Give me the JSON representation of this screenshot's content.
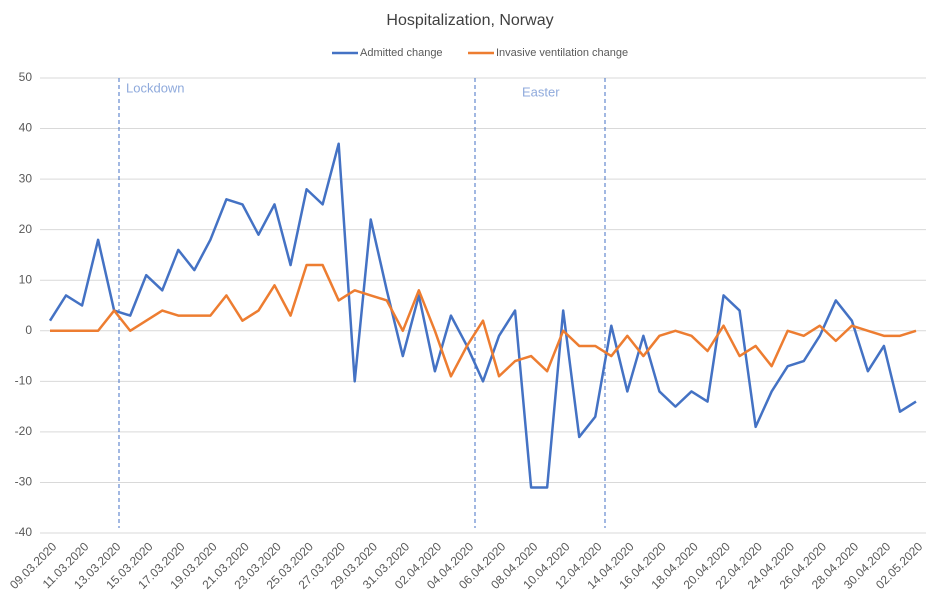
{
  "chart_data": {
    "type": "line",
    "title": "Hospitalization, Norway",
    "categories": [
      "09.03.2020",
      null,
      "11.03.2020",
      null,
      "13.03.2020",
      null,
      "15.03.2020",
      null,
      "17.03.2020",
      null,
      "19.03.2020",
      null,
      "21.03.2020",
      null,
      "23.03.2020",
      null,
      "25.03.2020",
      null,
      "27.03.2020",
      null,
      "29.03.2020",
      null,
      "31.03.2020",
      null,
      "02.04.2020",
      null,
      "04.04.2020",
      null,
      "06.04.2020",
      null,
      "08.04.2020",
      null,
      "10.04.2020",
      null,
      "12.04.2020",
      null,
      "14.04.2020",
      null,
      "16.04.2020",
      null,
      "18.04.2020",
      null,
      "20.04.2020",
      null,
      "22.04.2020",
      null,
      "24.04.2020",
      null,
      "26.04.2020",
      null,
      "28.04.2020",
      null,
      "30.04.2020",
      null,
      "02.05.2020"
    ],
    "series": [
      {
        "name": "Admitted change",
        "color": "#4472c4",
        "values": [
          2,
          7,
          5,
          18,
          4,
          3,
          11,
          8,
          16,
          12,
          18,
          26,
          25,
          19,
          25,
          13,
          28,
          25,
          37,
          -10,
          22,
          8,
          -5,
          7,
          -8,
          3,
          -3,
          -10,
          -1,
          4,
          -31,
          -31,
          4,
          -21,
          -17,
          1,
          -12,
          -1,
          -12,
          -15,
          -12,
          -14,
          7,
          4,
          -19,
          -12,
          -7,
          -6,
          -1,
          6,
          2,
          -8,
          -3,
          -16,
          -14
        ]
      },
      {
        "name": "Invasive ventilation change",
        "color": "#ed7d31",
        "values": [
          0,
          0,
          0,
          0,
          4,
          0,
          2,
          4,
          3,
          3,
          3,
          7,
          2,
          4,
          9,
          3,
          13,
          13,
          6,
          8,
          7,
          6,
          0,
          8,
          0,
          -9,
          -3,
          2,
          -9,
          -6,
          -5,
          -8,
          0,
          -3,
          -3,
          -5,
          -1,
          -5,
          -1,
          0,
          -1,
          -4,
          1,
          -5,
          -3,
          -7,
          0,
          -1,
          1,
          -2,
          1,
          0,
          -1,
          -1,
          0
        ]
      }
    ],
    "annotations": [
      "Lockdown",
      "Easter"
    ],
    "ylim": [
      -40,
      50
    ],
    "yticks": [
      -40,
      -30,
      -20,
      -10,
      0,
      10,
      20,
      30,
      40,
      50
    ],
    "grid": true,
    "legend": "top"
  }
}
